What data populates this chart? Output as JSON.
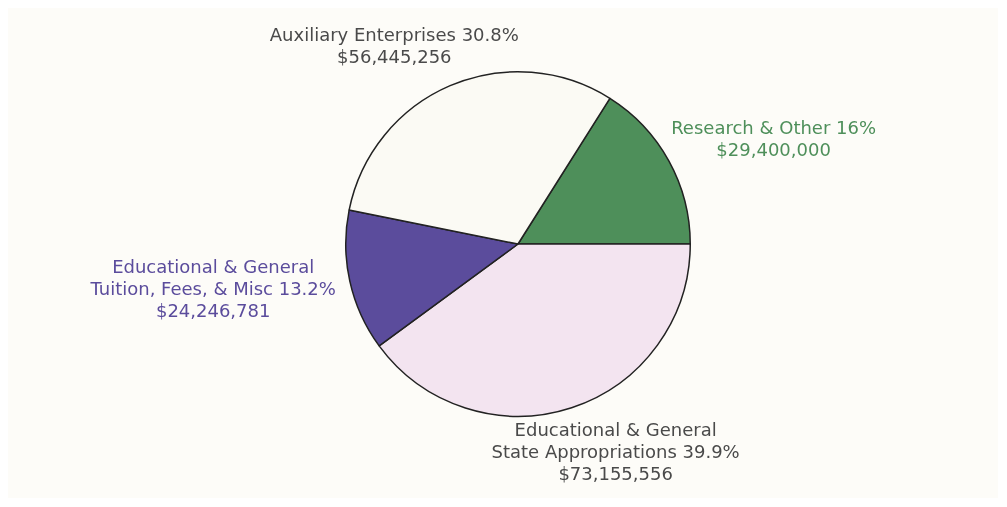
{
  "chart_data": {
    "type": "pie",
    "categories": [
      "Research & Other 16%",
      "Educational & General\nState Appropriations 39.9%",
      "Educational & General\nTuition, Fees, & Misc 13.2%",
      "Auxiliary Enterprises 30.8%"
    ],
    "values": [
      29400000,
      73155556,
      24246781,
      56445256
    ],
    "value_labels": [
      "$29,400,000",
      "$73,155,556",
      "$24,246,781",
      "$56,445,256"
    ],
    "colors": [
      "#4e8f5a",
      "#f3e4f0",
      "#5b4c9c",
      "#fbfaf4"
    ],
    "legend": false
  }
}
